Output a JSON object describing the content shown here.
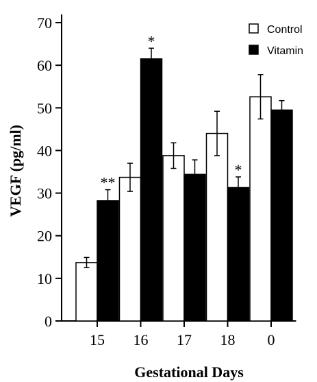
{
  "chart_data": {
    "type": "bar",
    "xlabel": "Gestational Days",
    "ylabel": "VEGF (pg/ml)",
    "ylim": [
      0,
      70
    ],
    "yticks": [
      0,
      10,
      20,
      30,
      40,
      50,
      60,
      70
    ],
    "categories": [
      "15",
      "16",
      "17",
      "18",
      "0"
    ],
    "legend_position": "top-right",
    "series": [
      {
        "name": "Control",
        "fill": "#ffffff",
        "values": [
          13.7,
          33.7,
          38.8,
          44.0,
          52.6
        ],
        "errors": [
          1.2,
          3.3,
          3.0,
          5.2,
          5.2
        ],
        "annotations": [
          "",
          "",
          "",
          "",
          ""
        ]
      },
      {
        "name": "Vitamin",
        "fill": "#000000",
        "values": [
          28.2,
          61.5,
          34.4,
          31.3,
          49.5
        ],
        "errors": [
          2.6,
          2.5,
          3.4,
          2.5,
          2.2
        ],
        "annotations": [
          "**",
          "*",
          "",
          "*",
          ""
        ]
      }
    ]
  }
}
